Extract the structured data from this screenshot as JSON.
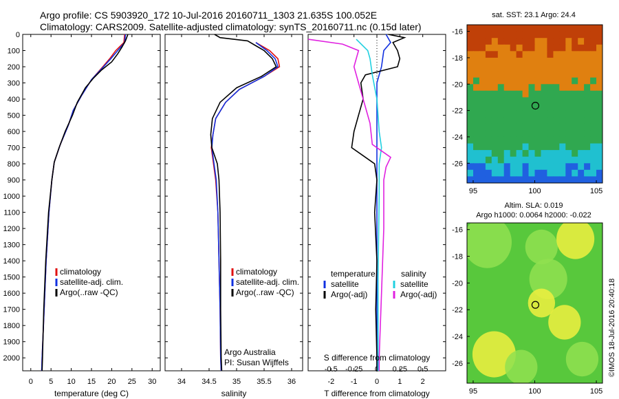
{
  "header": {
    "line1": "Argo profile: CS 5903920_172 10-Jul-2016 20160711_1303 21.635S 100.052E",
    "line2": "Climatology: CARS2009. Satellite-adjusted climatology: synTS_20160711.nc (0.15d later)"
  },
  "colors": {
    "climatology": "#e01010",
    "satellite": "#1030e0",
    "argo": "#000000",
    "salinity_sat": "#20d0e0",
    "salinity_argo": "#e020e0"
  },
  "depth_axis": {
    "ticks": [
      0,
      100,
      200,
      300,
      400,
      500,
      600,
      700,
      800,
      900,
      1000,
      1100,
      1200,
      1300,
      1400,
      1500,
      1600,
      1700,
      1800,
      1900,
      2000
    ],
    "ylim": [
      0,
      2080
    ]
  },
  "chart_data": [
    {
      "type": "line",
      "xlabel": "temperature (deg C)",
      "xlim": [
        -2,
        32
      ],
      "xticks": [
        0,
        5,
        10,
        15,
        20,
        25,
        30
      ],
      "legend": {
        "placement": "center-left",
        "items": [
          {
            "label": "climatology",
            "series": "climatology"
          },
          {
            "label": "satellite-adj. clim.",
            "series": "satellite"
          },
          {
            "label": "Argo(..raw -QC)",
            "series": "argo"
          }
        ]
      },
      "series": [
        {
          "name": "climatology",
          "color_key": "climatology",
          "points": [
            [
              23.2,
              0
            ],
            [
              23,
              50
            ],
            [
              21,
              100
            ],
            [
              19.5,
              150
            ],
            [
              17.8,
              200
            ],
            [
              15,
              280
            ],
            [
              12.5,
              380
            ],
            [
              10.5,
              470
            ],
            [
              9.3,
              560
            ],
            [
              7.3,
              680
            ],
            [
              5.8,
              790
            ],
            [
              5.2,
              900
            ],
            [
              4.5,
              1100
            ],
            [
              3.8,
              1400
            ],
            [
              3.3,
              1700
            ],
            [
              2.8,
              2000
            ],
            [
              2.7,
              2080
            ]
          ]
        },
        {
          "name": "satellite",
          "color_key": "satellite",
          "points": [
            [
              23.4,
              0
            ],
            [
              23.2,
              50
            ],
            [
              21.5,
              100
            ],
            [
              19.8,
              150
            ],
            [
              18,
              200
            ],
            [
              15,
              280
            ],
            [
              12.5,
              380
            ],
            [
              10.5,
              470
            ],
            [
              9.3,
              560
            ],
            [
              7.3,
              680
            ],
            [
              5.8,
              790
            ],
            [
              5.2,
              900
            ],
            [
              4.5,
              1100
            ],
            [
              3.8,
              1400
            ],
            [
              3.3,
              1700
            ],
            [
              2.8,
              2000
            ],
            [
              2.7,
              2080
            ]
          ]
        },
        {
          "name": "argo",
          "color_key": "argo",
          "points": [
            [
              24,
              0
            ],
            [
              23.4,
              40
            ],
            [
              22.5,
              80
            ],
            [
              21.5,
              120
            ],
            [
              20,
              170
            ],
            [
              17.5,
              220
            ],
            [
              15.5,
              270
            ],
            [
              13.5,
              330
            ],
            [
              11.5,
              420
            ],
            [
              10.3,
              500
            ],
            [
              8.5,
              600
            ],
            [
              7,
              700
            ],
            [
              5.8,
              790
            ],
            [
              5.2,
              900
            ],
            [
              4.4,
              1100
            ],
            [
              3.7,
              1400
            ],
            [
              3.2,
              1700
            ],
            [
              2.9,
              2000
            ],
            [
              2.8,
              2080
            ]
          ]
        }
      ]
    },
    {
      "type": "line",
      "xlabel": "salinity",
      "xlim": [
        33.7,
        36.2
      ],
      "xticks": [
        34,
        34.5,
        35,
        35.5,
        36
      ],
      "legend": {
        "placement": "center-left",
        "items": [
          {
            "label": "climatology",
            "series": "climatology"
          },
          {
            "label": "satellite-adj. clim.",
            "series": "satellite"
          },
          {
            "label": "Argo(..raw -QC)",
            "series": "argo"
          }
        ]
      },
      "annotations": [
        "Argo Australia",
        "PI: Susan Wijffels"
      ],
      "series": [
        {
          "name": "climatology",
          "color_key": "climatology",
          "points": [
            [
              35.35,
              50
            ],
            [
              35.6,
              100
            ],
            [
              35.75,
              150
            ],
            [
              35.78,
              200
            ],
            [
              35.5,
              260
            ],
            [
              35.05,
              340
            ],
            [
              34.8,
              420
            ],
            [
              34.62,
              520
            ],
            [
              34.57,
              620
            ],
            [
              34.54,
              700
            ],
            [
              34.58,
              800
            ],
            [
              34.62,
              900
            ],
            [
              34.66,
              1100
            ],
            [
              34.68,
              1400
            ],
            [
              34.7,
              1700
            ],
            [
              34.71,
              2000
            ],
            [
              34.72,
              2080
            ]
          ]
        },
        {
          "name": "satellite",
          "color_key": "satellite",
          "points": [
            [
              35.35,
              50
            ],
            [
              35.55,
              100
            ],
            [
              35.7,
              150
            ],
            [
              35.75,
              200
            ],
            [
              35.5,
              260
            ],
            [
              35.05,
              340
            ],
            [
              34.8,
              420
            ],
            [
              34.62,
              520
            ],
            [
              34.57,
              620
            ],
            [
              34.55,
              700
            ],
            [
              34.59,
              800
            ],
            [
              34.63,
              900
            ],
            [
              34.66,
              1100
            ],
            [
              34.68,
              1400
            ],
            [
              34.7,
              1700
            ],
            [
              34.71,
              2000
            ],
            [
              34.72,
              2080
            ]
          ]
        },
        {
          "name": "argo",
          "color_key": "argo",
          "points": [
            [
              34.6,
              0
            ],
            [
              34.7,
              20
            ],
            [
              35.2,
              40
            ],
            [
              35.35,
              70
            ],
            [
              35.5,
              100
            ],
            [
              35.65,
              150
            ],
            [
              35.72,
              200
            ],
            [
              35.45,
              260
            ],
            [
              35.0,
              330
            ],
            [
              34.7,
              420
            ],
            [
              34.56,
              520
            ],
            [
              34.53,
              620
            ],
            [
              34.55,
              700
            ],
            [
              34.65,
              800
            ],
            [
              34.68,
              900
            ],
            [
              34.7,
              1100
            ],
            [
              34.71,
              1400
            ],
            [
              34.71,
              1700
            ],
            [
              34.72,
              2000
            ],
            [
              34.73,
              2080
            ]
          ]
        }
      ]
    },
    {
      "type": "line",
      "xlabel": "T difference from climatology",
      "xlim": [
        -3,
        3
      ],
      "xticks": [
        -2,
        -1,
        0,
        1,
        2
      ],
      "top_label": "S difference from climatology",
      "top_ticks": [
        {
          "label": "-0.5",
          "T": -2
        },
        {
          "label": "-0.25",
          "T": -1
        },
        {
          "label": "0",
          "T": 0
        },
        {
          "label": "0.25",
          "T": 1
        },
        {
          "label": "0.5",
          "T": 2
        }
      ],
      "legend": {
        "placement": "center-left",
        "temperature_title": "temperature",
        "salinity_title": "salinity",
        "items": [
          {
            "label": "satellite",
            "series": "T satellite"
          },
          {
            "label": "Argo(-adj)",
            "series": "T argo"
          },
          {
            "label": "satellite",
            "series": "S satellite"
          },
          {
            "label": "Argo(-adj)",
            "series": "S argo"
          }
        ]
      },
      "series": [
        {
          "name": "T satellite",
          "color_key": "satellite",
          "points": [
            [
              0.4,
              0
            ],
            [
              0.6,
              50
            ],
            [
              0.3,
              100
            ],
            [
              0.2,
              200
            ],
            [
              0,
              300
            ],
            [
              0,
              500
            ],
            [
              0,
              800
            ],
            [
              0,
              1200
            ],
            [
              0,
              1600
            ],
            [
              0,
              2000
            ],
            [
              0,
              2080
            ]
          ]
        },
        {
          "name": "T argo",
          "color_key": "argo",
          "points": [
            [
              0.5,
              0
            ],
            [
              1.2,
              20
            ],
            [
              0.7,
              50
            ],
            [
              0.9,
              100
            ],
            [
              1.0,
              150
            ],
            [
              0.9,
              200
            ],
            [
              -0.5,
              250
            ],
            [
              -0.7,
              300
            ],
            [
              -0.6,
              400
            ],
            [
              -0.8,
              500
            ],
            [
              -1.0,
              600
            ],
            [
              -1.1,
              700
            ],
            [
              -0.6,
              750
            ],
            [
              -0.1,
              800
            ],
            [
              0,
              900
            ],
            [
              -0.1,
              1100
            ],
            [
              0,
              1400
            ],
            [
              -0.05,
              1700
            ],
            [
              0,
              2000
            ],
            [
              0,
              2080
            ]
          ]
        },
        {
          "name": "S satellite",
          "color_key": "salinity_sat",
          "points": [
            [
              -0.9,
              30
            ],
            [
              -0.4,
              100
            ],
            [
              -0.3,
              150
            ],
            [
              -0.2,
              250
            ],
            [
              0,
              400
            ],
            [
              0.1,
              600
            ],
            [
              0.2,
              700
            ],
            [
              0.1,
              800
            ],
            [
              0.1,
              1000
            ],
            [
              0.05,
              1500
            ],
            [
              0.05,
              2000
            ],
            [
              0.05,
              2080
            ]
          ]
        },
        {
          "name": "S argo",
          "color_key": "salinity_argo",
          "points": [
            [
              -3,
              30
            ],
            [
              -1.5,
              60
            ],
            [
              -0.8,
              100
            ],
            [
              -1.0,
              200
            ],
            [
              -0.8,
              300
            ],
            [
              -0.6,
              400
            ],
            [
              -0.3,
              550
            ],
            [
              -0.2,
              680
            ],
            [
              0.6,
              760
            ],
            [
              0.4,
              820
            ],
            [
              0.3,
              900
            ],
            [
              0.3,
              1200
            ],
            [
              0.2,
              1600
            ],
            [
              0.1,
              2000
            ],
            [
              0.1,
              2080
            ]
          ]
        }
      ]
    },
    {
      "type": "heatmap",
      "title": "sat. SST: 23.1  Argo: 24.4",
      "xlim": [
        94.5,
        105.5
      ],
      "ylim": [
        -27.5,
        -15.5
      ],
      "xticks": [
        95,
        100,
        105
      ],
      "yticks": [
        -16,
        -18,
        -20,
        -22,
        -24,
        -26
      ],
      "marker": {
        "lon": 100.052,
        "lat": -21.635
      },
      "colors": {
        "warm": "#c04008",
        "orange": "#e08010",
        "green": "#30a850",
        "cyan": "#20c0d0",
        "blue": "#2060e0"
      }
    },
    {
      "type": "heatmap",
      "title": "Altim. SLA: 0.019",
      "subtitle": "Argo h1000: 0.0064 h2000: -0.022",
      "xlim": [
        94.5,
        105.5
      ],
      "ylim": [
        -27.5,
        -15.5
      ],
      "xticks": [
        95,
        100,
        105
      ],
      "yticks": [
        -16,
        -18,
        -20,
        -22,
        -24,
        -26
      ],
      "marker": {
        "lon": 100.052,
        "lat": -21.635
      },
      "colors": {
        "green": "#40c040",
        "lightgreen": "#90e050",
        "yellow": "#f0f040"
      }
    }
  ],
  "footer": {
    "stamp": "©IMOS 18-Jul-2016 20:40:18"
  }
}
